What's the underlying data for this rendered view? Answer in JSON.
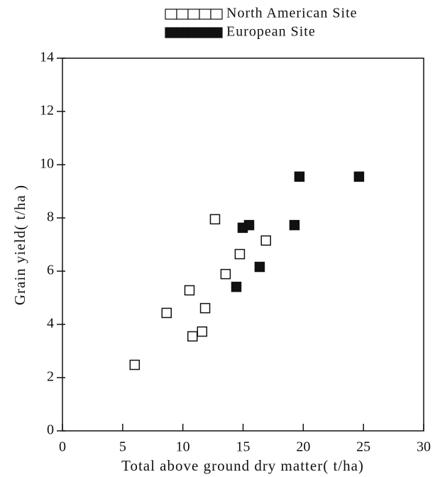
{
  "chart_data": {
    "type": "scatter",
    "x_label": "Total above ground dry matter( t/ha)",
    "y_label": "Grain yield( t/ha )",
    "xlim": [
      0,
      30
    ],
    "xticks": [
      0,
      5,
      10,
      15,
      20,
      25,
      30
    ],
    "ylim": [
      0,
      14
    ],
    "yticks": [
      0,
      2,
      4,
      6,
      8,
      10,
      12,
      14
    ],
    "legend": "top-right",
    "series": [
      {
        "name": "North American Site",
        "color": "#111111",
        "marker": "open-square",
        "x": [
          6.0,
          8.65,
          10.55,
          10.8,
          11.6,
          11.85,
          12.67,
          13.55,
          14.73,
          16.9
        ],
        "values": [
          2.48,
          4.43,
          5.28,
          3.55,
          3.73,
          4.61,
          7.95,
          5.89,
          6.64,
          7.15
        ]
      },
      {
        "name": "European Site",
        "color": "#111111",
        "marker": "filled-square",
        "x": [
          14.44,
          14.97,
          15.5,
          16.38,
          19.27,
          19.68,
          24.63
        ],
        "values": [
          5.41,
          7.63,
          7.73,
          6.16,
          7.73,
          9.55,
          9.55
        ]
      }
    ]
  }
}
